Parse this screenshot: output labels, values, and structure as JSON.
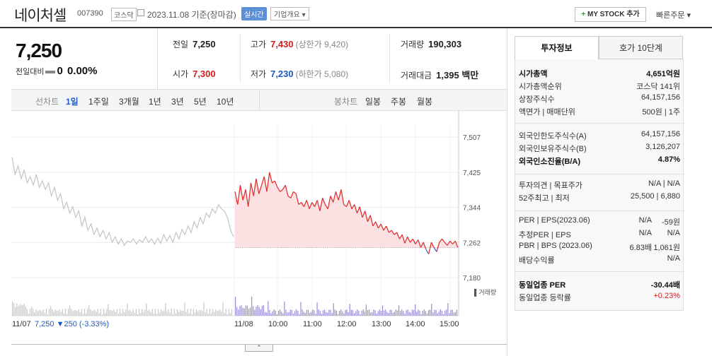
{
  "header": {
    "name": "네이처셀",
    "code": "007390",
    "market": "코스닥",
    "date": "2023.11.08 기준(장마감)",
    "live_badge": "실시간",
    "company_info": "기업개요",
    "mystock_label": "MY STOCK 추가",
    "quick_order": "빠른주문"
  },
  "price": {
    "current": "7,250",
    "change_label": "전일대비",
    "change_value": "0",
    "change_pct": "0.00%"
  },
  "stats": {
    "prev_close_label": "전일",
    "prev_close": "7,250",
    "high_label": "고가",
    "high": "7,430",
    "upper_limit": "(상한가 9,420)",
    "volume_label": "거래량",
    "volume": "190,303",
    "open_label": "시가",
    "open": "7,300",
    "low_label": "저가",
    "low": "7,230",
    "lower_limit": "(하한가 5,080)",
    "amount_label": "거래대금",
    "amount": "1,395 백만"
  },
  "period_bar": {
    "line_chart_label": "선차트",
    "periods": [
      "1일",
      "1주일",
      "3개월",
      "1년",
      "3년",
      "5년",
      "10년"
    ],
    "selected_period": "1일",
    "candle_label": "봉차트",
    "candle_periods": [
      "일봉",
      "주봉",
      "월봉"
    ]
  },
  "chart_data": {
    "type": "line",
    "y_ticks": [
      "7,507",
      "7,425",
      "7,344",
      "7,262",
      "7,180"
    ],
    "ylim": [
      7180,
      7507
    ],
    "x_labels": [
      "11/07",
      "11/08",
      "10:00",
      "11:00",
      "12:00",
      "13:00",
      "14:00",
      "15:00"
    ],
    "reference_price": 7250,
    "volume_legend": "거래량",
    "prev_day_summary": {
      "date": "11/07",
      "price": "7,250",
      "change": "▼250",
      "pct": "(-3.33%)"
    },
    "prev_day_series": [
      7460,
      7420,
      7440,
      7410,
      7430,
      7400,
      7415,
      7395,
      7420,
      7390,
      7405,
      7385,
      7400,
      7370,
      7390,
      7360,
      7375,
      7340,
      7355,
      7330,
      7345,
      7320,
      7335,
      7300,
      7320,
      7290,
      7305,
      7280,
      7295,
      7275,
      7290,
      7270,
      7285,
      7262,
      7275,
      7258,
      7270,
      7255,
      7265,
      7262,
      7270,
      7258,
      7268,
      7262,
      7275,
      7262,
      7270,
      7258,
      7272,
      7260,
      7280,
      7265,
      7278,
      7262,
      7285,
      7270,
      7292,
      7280,
      7300,
      7285,
      7310,
      7295,
      7320,
      7305,
      7330,
      7320,
      7340,
      7330,
      7350,
      7340,
      7335,
      7320,
      7290,
      7275
    ],
    "today_series": [
      7380,
      7350,
      7395,
      7360,
      7385,
      7345,
      7400,
      7370,
      7410,
      7375,
      7395,
      7415,
      7380,
      7425,
      7400,
      7405,
      7390,
      7380,
      7385,
      7395,
      7370,
      7365,
      7380,
      7375,
      7350,
      7355,
      7345,
      7360,
      7340,
      7355,
      7345,
      7360,
      7335,
      7365,
      7350,
      7340,
      7370,
      7355,
      7380,
      7360,
      7385,
      7350,
      7345,
      7360,
      7340,
      7350,
      7330,
      7345,
      7320,
      7335,
      7310,
      7325,
      7300,
      7310,
      7295,
      7305,
      7290,
      7300,
      7285,
      7290,
      7280,
      7285,
      7270,
      7280,
      7260,
      7275,
      7262,
      7270,
      7258,
      7268,
      7250,
      7262,
      7245,
      7235,
      7262,
      7250,
      7240,
      7262,
      7270,
      7262,
      7255,
      7265,
      7258,
      7265,
      7250
    ]
  },
  "info_panel": {
    "tabs": [
      "투자정보",
      "호가 10단계"
    ],
    "selected_tab": "투자정보",
    "group1": [
      {
        "k": "시가총액",
        "v": "4,651억원",
        "bold": true
      },
      {
        "k": "시가총액순위",
        "v": "코스닥 141위"
      },
      {
        "k": "상장주식수",
        "v": "64,157,156"
      },
      {
        "k": "액면가 | 매매단위",
        "v": "500원 | 1주"
      }
    ],
    "group2": [
      {
        "k": "외국인한도주식수(A)",
        "v": "64,157,156"
      },
      {
        "k": "외국인보유주식수(B)",
        "v": "3,126,207"
      },
      {
        "k": "외국인소진율(B/A)",
        "v": "4.87%",
        "bold": true
      }
    ],
    "group3": [
      {
        "k": "투자의견 | 목표주가",
        "v": "N/A | N/A"
      },
      {
        "k": "52주최고 | 최저",
        "v": "25,500 | 6,880"
      }
    ],
    "group4": [
      {
        "k": "PER | EPS(2023.06)",
        "v1": "N/A",
        "v2": "-59원"
      },
      {
        "k": "추정PER | EPS",
        "v1": "N/A",
        "v2": "N/A"
      },
      {
        "k": "PBR | BPS (2023.06)",
        "v1": "6.83배",
        "v2": "1,061원"
      },
      {
        "k": "배당수익률",
        "v": "N/A"
      }
    ],
    "group5": [
      {
        "k": "동일업종 PER",
        "v": "-30.44배",
        "bold": true
      },
      {
        "k": "동일업종 등락률",
        "v": "+0.23%",
        "red": true
      }
    ]
  }
}
